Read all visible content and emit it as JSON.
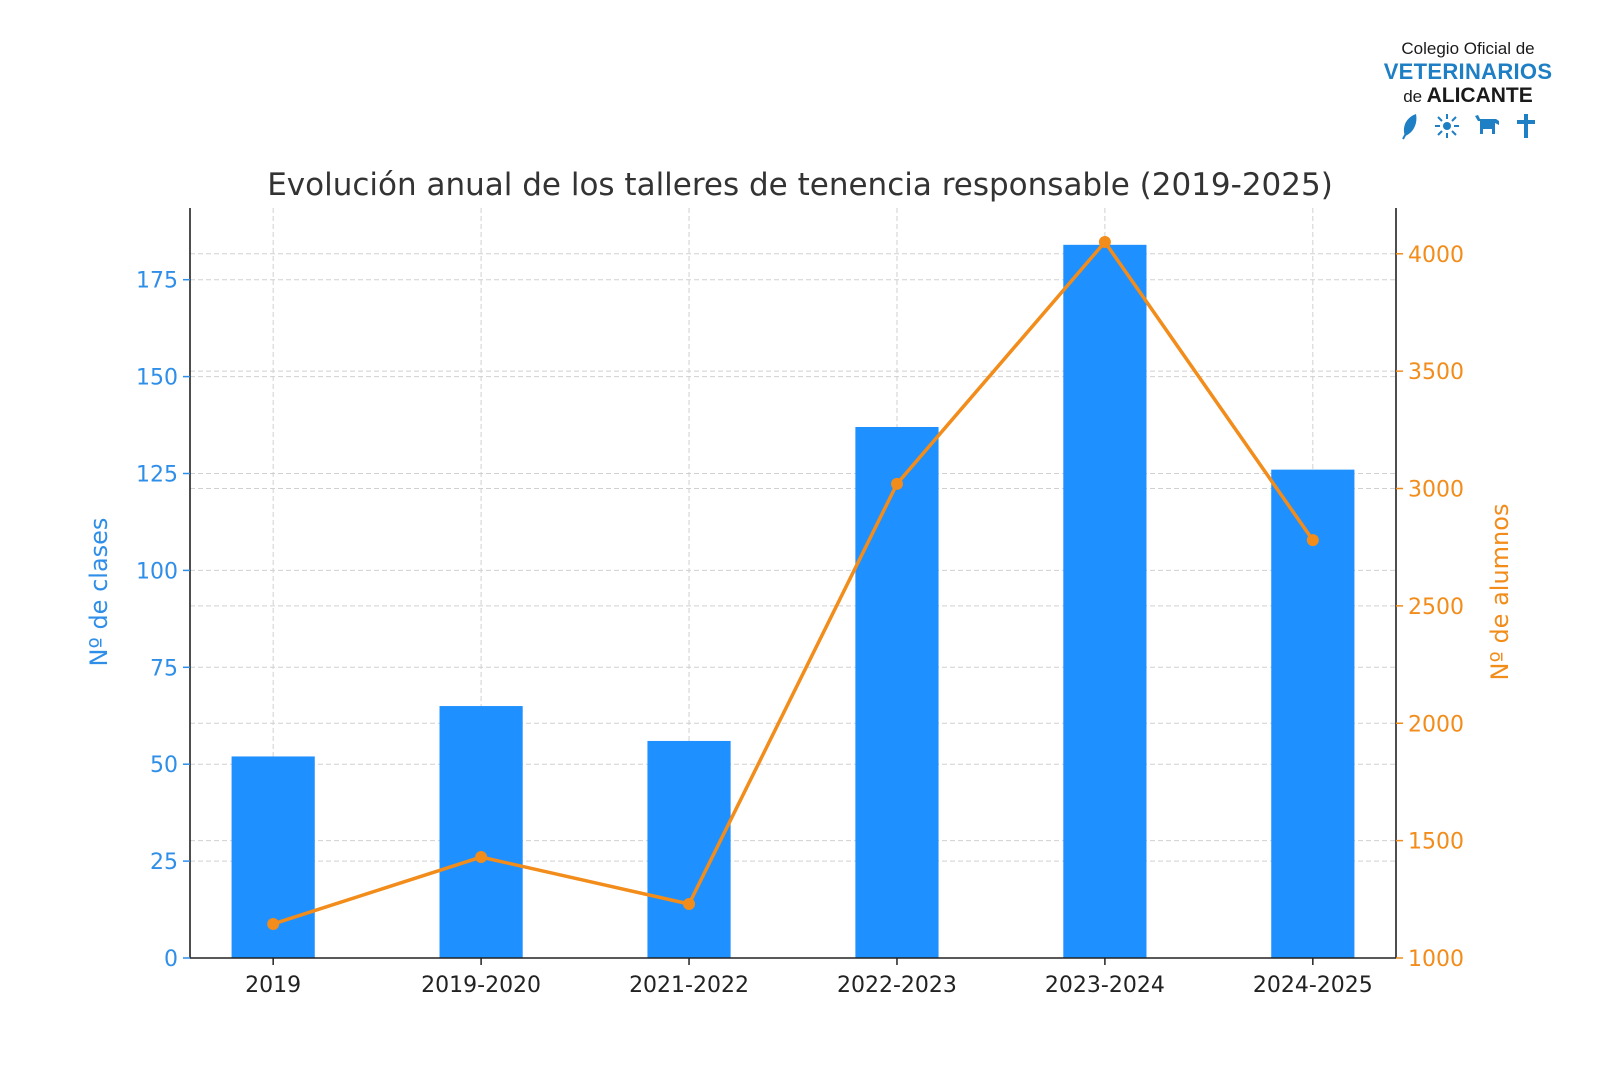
{
  "logo": {
    "line1": "Colegio Oficial de",
    "line2": "VETERINARIOS",
    "line3_prefix": "de",
    "line3_main": "ALICANTE",
    "icons": [
      "leaf-icon",
      "sun-icon",
      "bull-icon",
      "cross-icon"
    ],
    "color": "#1f7fc4"
  },
  "chart_data": {
    "type": "bar",
    "title": "Evolución anual de los talleres de tenencia responsable (2019-2025)",
    "categories": [
      "2019",
      "2019-2020",
      "2021-2022",
      "2022-2023",
      "2023-2024",
      "2024-2025"
    ],
    "series": [
      {
        "name": "Nº de clases",
        "type": "bar",
        "axis": "left",
        "color": "#1e90ff",
        "values": [
          52,
          65,
          56,
          137,
          184,
          126
        ]
      },
      {
        "name": "Nº de alumnos",
        "type": "line",
        "axis": "right",
        "color": "#f28c1a",
        "values": [
          1145,
          1430,
          1230,
          3020,
          4050,
          2780
        ]
      }
    ],
    "ylabel": "Nº de clases",
    "y2label": "Nº de alumnos",
    "ylim": [
      0,
      193.5
    ],
    "y2lim": [
      1000,
      4195
    ],
    "yticks": [
      0,
      25,
      50,
      75,
      100,
      125,
      150,
      175
    ],
    "y2ticks": [
      1000,
      1500,
      2000,
      2500,
      3000,
      3500,
      4000
    ],
    "grid": true,
    "left_axis_color": "#2e8ee8",
    "right_axis_color": "#f28c1a"
  }
}
